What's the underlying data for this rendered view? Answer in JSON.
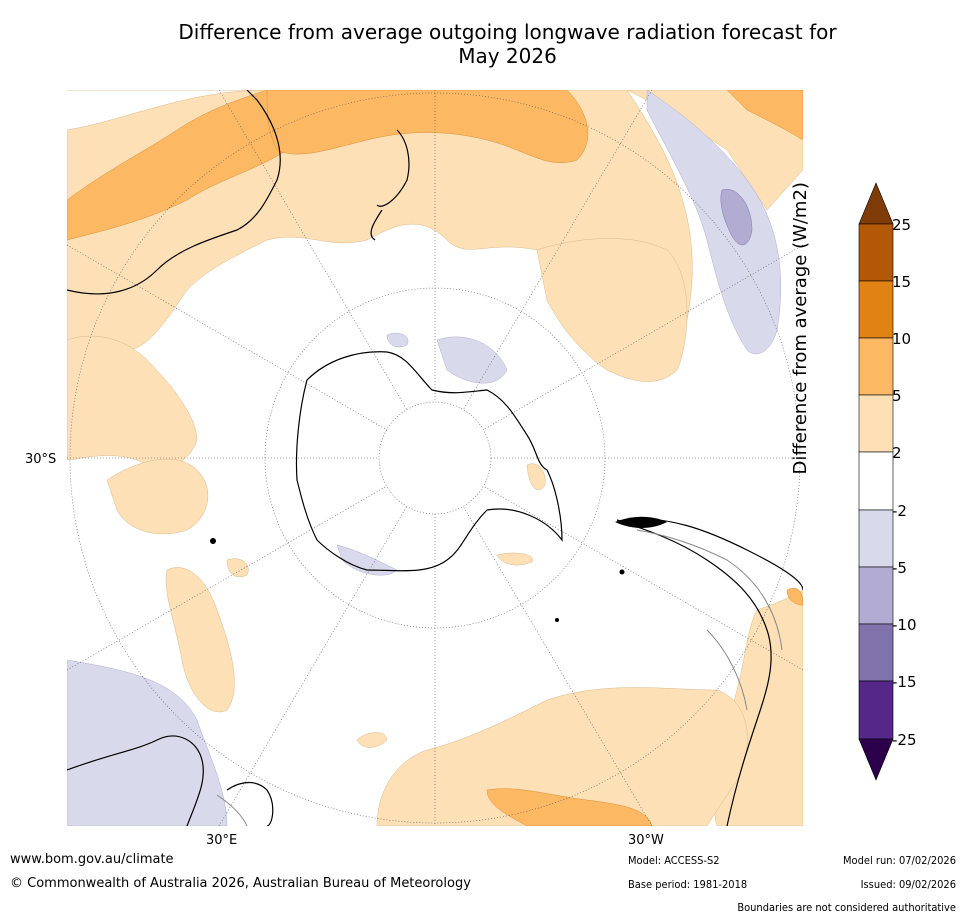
{
  "title_line1": "Difference from average outgoing longwave radiation forecast for",
  "title_line2": "May 2026",
  "labels": {
    "lat_left": "30°S",
    "lon_30e": "30°E",
    "lon_30w": "30°W"
  },
  "colorbar": {
    "title": "Difference from average (W/m2)",
    "levels": [
      "25",
      "15",
      "10",
      "5",
      "2",
      "-2",
      "-5",
      "-10",
      "-15",
      "-25"
    ],
    "colors": {
      "above_max": "#7f3b08",
      "b15_25": "#b35806",
      "b10_15": "#e08214",
      "b5_10": "#fdb863",
      "b2_5": "#fee0b6",
      "neutral": "#ffffff",
      "m2_m5": "#d8daeb",
      "m5_m10": "#b2abd2",
      "m10_m15": "#8073ac",
      "m15_m25": "#542788",
      "below_min": "#2d004b"
    }
  },
  "footer": {
    "url": "www.bom.gov.au/climate",
    "copyright": "© Commonwealth of Australia 2026, Australian Bureau of Meteorology",
    "model": "Model: ACCESS-S2",
    "base_period": "Base period: 1981-2018",
    "model_run": "Model run: 07/02/2026",
    "issued": "Issued: 09/02/2026",
    "disclaimer": "Boundaries are not considered authoritative"
  }
}
